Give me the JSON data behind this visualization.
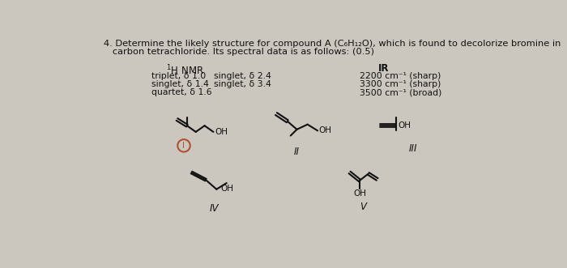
{
  "background_color": "#cbc7be",
  "title_line1": "4. Determine the likely structure for compound A (C₆H₁₂O), which is found to decolorize bromine in",
  "title_line2": "   carbon tetrachloride. Its spectral data is as follows: (0.5)",
  "nmr_col1": [
    "triplet, δ 1.0",
    "singlet, δ 1.4",
    "quartet, δ 1.6"
  ],
  "nmr_col2": [
    "singlet, δ 2.4",
    "singlet, δ 3.4"
  ],
  "ir_lines": [
    "2200 cm⁻¹ (sharp)",
    "3300 cm⁻¹ (sharp)",
    "3500 cm⁻¹ (broad)"
  ],
  "text_color": "#111111",
  "circle_color": "#b05030",
  "lw": 1.5
}
